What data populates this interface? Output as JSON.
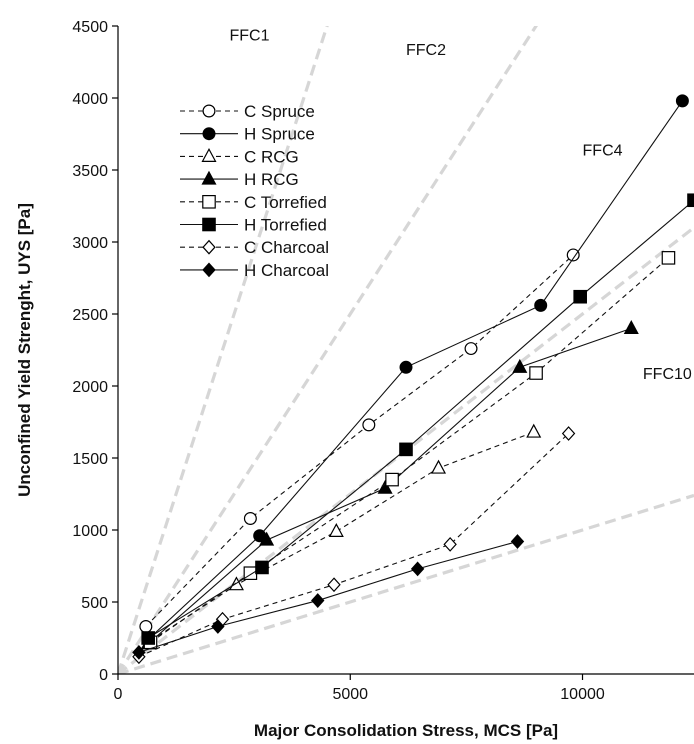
{
  "chart_data": {
    "type": "line",
    "xlabel": "Major Consolidation Stress, MCS [Pa]",
    "ylabel": "Unconfined Yield Strenght, UYS [Pa]",
    "xlim": [
      0,
      12400
    ],
    "ylim": [
      0,
      4500
    ],
    "xticks": [
      0,
      5000,
      10000
    ],
    "xtick_labels": [
      "0",
      "5000",
      "10000"
    ],
    "yticks": [
      0,
      500,
      1000,
      1500,
      2000,
      2500,
      3000,
      3500,
      4000,
      4500
    ],
    "ytick_labels": [
      "0",
      "500",
      "1000",
      "1500",
      "2000",
      "2500",
      "3000",
      "3500",
      "4000",
      "4500"
    ],
    "grid": false,
    "legend_position": "upper-left",
    "ffc_lines": [
      {
        "label": "FFC1",
        "ffc": 1,
        "label_x": 2400,
        "label_y": 4400
      },
      {
        "label": "FFC2",
        "ffc": 2,
        "label_x": 6200,
        "label_y": 4300
      },
      {
        "label": "FFC4",
        "ffc": 4,
        "label_x": 10000,
        "label_y": 3600
      },
      {
        "label": "FFC10",
        "ffc": 10,
        "label_x": 11300,
        "label_y": 2050
      }
    ],
    "series": [
      {
        "name": "C Spruce",
        "marker": "circle",
        "filled": false,
        "dashed": true,
        "x": [
          600,
          2850,
          5400,
          7600,
          9800
        ],
        "y": [
          330,
          1080,
          1730,
          2260,
          2910
        ]
      },
      {
        "name": "H Spruce",
        "marker": "circle",
        "filled": true,
        "dashed": false,
        "x": [
          650,
          3050,
          6200,
          9100,
          12150
        ],
        "y": [
          240,
          960,
          2130,
          2560,
          3980
        ]
      },
      {
        "name": "C RCG",
        "marker": "triangle",
        "filled": false,
        "dashed": true,
        "x": [
          700,
          2550,
          4700,
          6900,
          8950
        ],
        "y": [
          230,
          620,
          990,
          1430,
          1680
        ]
      },
      {
        "name": "H RCG",
        "marker": "triangle",
        "filled": true,
        "dashed": false,
        "x": [
          650,
          3200,
          5750,
          8650,
          11050
        ],
        "y": [
          210,
          930,
          1290,
          2130,
          2400
        ]
      },
      {
        "name": "C Torrefied",
        "marker": "square",
        "filled": false,
        "dashed": true,
        "x": [
          700,
          2850,
          5900,
          9000,
          11850
        ],
        "y": [
          220,
          700,
          1350,
          2090,
          2890
        ]
      },
      {
        "name": "H Torrefied",
        "marker": "square",
        "filled": true,
        "dashed": false,
        "x": [
          650,
          3100,
          6200,
          9950,
          12400
        ],
        "y": [
          250,
          740,
          1560,
          2620,
          3290
        ]
      },
      {
        "name": "C Charcoal",
        "marker": "diamond",
        "filled": false,
        "dashed": true,
        "x": [
          450,
          2250,
          4650,
          7150,
          9700
        ],
        "y": [
          120,
          380,
          620,
          900,
          1670
        ]
      },
      {
        "name": "H Charcoal",
        "marker": "diamond",
        "filled": true,
        "dashed": false,
        "x": [
          450,
          2150,
          4300,
          6450,
          8600
        ],
        "y": [
          150,
          330,
          510,
          730,
          920
        ]
      }
    ]
  }
}
